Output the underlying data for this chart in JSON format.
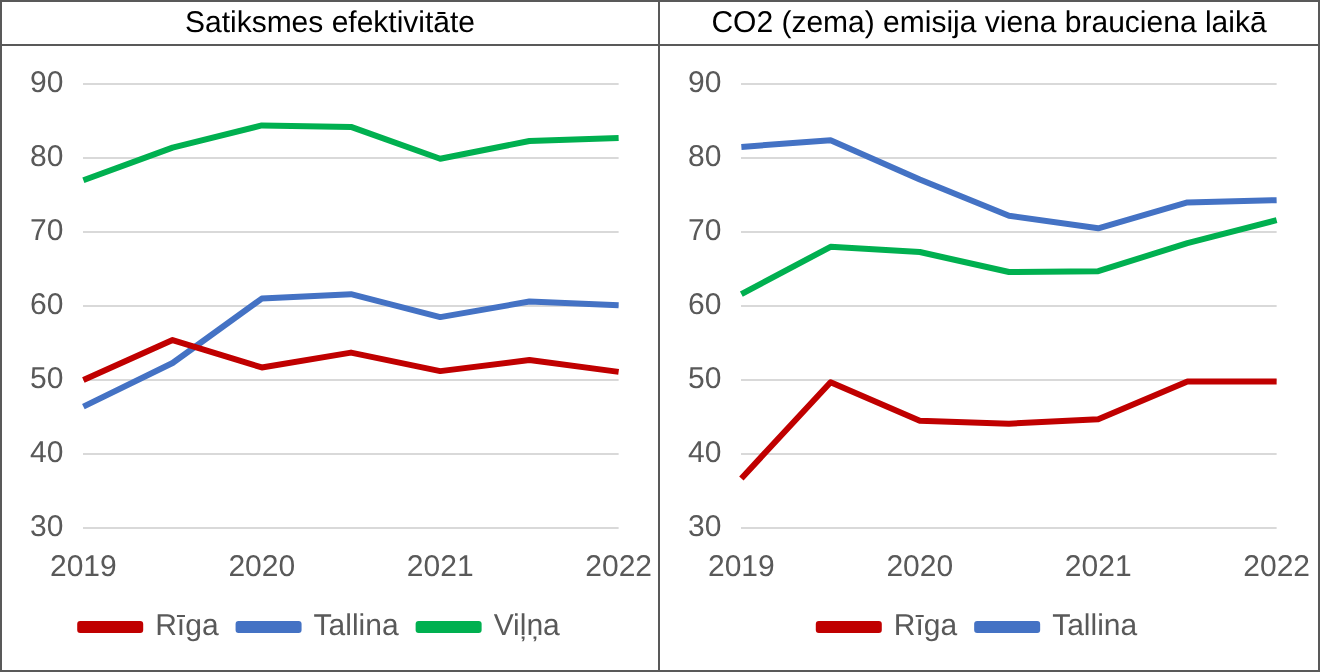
{
  "chart_data": [
    {
      "type": "line",
      "title": "Satiksmes efektivitāte",
      "categories": [
        "2019",
        null,
        "2020",
        null,
        "2021",
        null,
        "2022"
      ],
      "series": [
        {
          "name": "Rīga",
          "color": "#c00000",
          "values": [
            50,
            55.4,
            51.7,
            53.7,
            51.2,
            52.7,
            51.1
          ]
        },
        {
          "name": "Tallina",
          "color": "#4472c4",
          "values": [
            46.4,
            52.3,
            61,
            61.6,
            58.5,
            60.6,
            60.1
          ]
        },
        {
          "name": "Viļņa",
          "color": "#00b050",
          "values": [
            77,
            81.4,
            84.4,
            84.2,
            79.9,
            82.3,
            82.7
          ]
        }
      ],
      "ylim": [
        30,
        90
      ],
      "yticks": [
        30,
        40,
        50,
        60,
        70,
        80,
        90
      ],
      "grid": "y",
      "legend": "bottom",
      "marker": "none",
      "line_style": "solid"
    },
    {
      "type": "line",
      "title": "CO2 (zema) emisija viena brauciena laikā",
      "categories": [
        "2019",
        null,
        "2020",
        null,
        "2021",
        null,
        "2022"
      ],
      "series": [
        {
          "name": "Rīga",
          "color": "#c00000",
          "values": [
            36.7,
            49.7,
            44.5,
            44.1,
            44.7,
            49.8,
            49.8
          ]
        },
        {
          "name": "Tallina",
          "color": "#4472c4",
          "values": [
            81.5,
            82.4,
            77.1,
            72.2,
            70.5,
            74,
            74.3
          ]
        },
        {
          "color": "#00b050",
          "values": [
            61.6,
            68,
            67.3,
            64.6,
            64.7,
            68.5,
            71.6
          ]
        }
      ],
      "ylim": [
        30,
        90
      ],
      "yticks": [
        30,
        40,
        50,
        60,
        70,
        80,
        90
      ],
      "grid": "y",
      "legend": "bottom",
      "marker": "none",
      "line_style": "solid"
    }
  ]
}
